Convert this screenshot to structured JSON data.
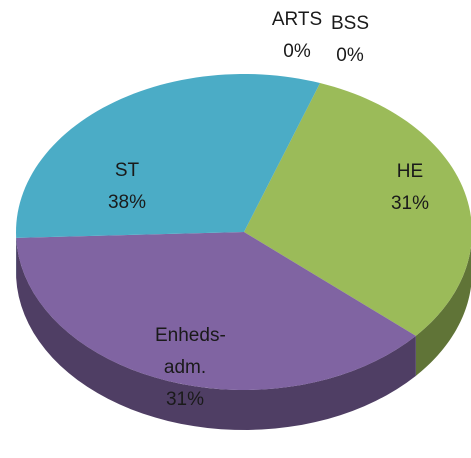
{
  "chart_data": {
    "type": "pie",
    "categories": [
      "ARTS",
      "BSS",
      "HE",
      "ST",
      "Enheds-adm."
    ],
    "values": [
      0,
      0,
      31,
      38,
      31
    ],
    "value_labels": [
      "0%",
      "0%",
      "31%",
      "38%",
      "31%"
    ],
    "colors": [
      "#4f81bd",
      "#c0504d",
      "#9bbb59",
      "#8064a2",
      "#4bacc6"
    ],
    "three_d": true
  }
}
